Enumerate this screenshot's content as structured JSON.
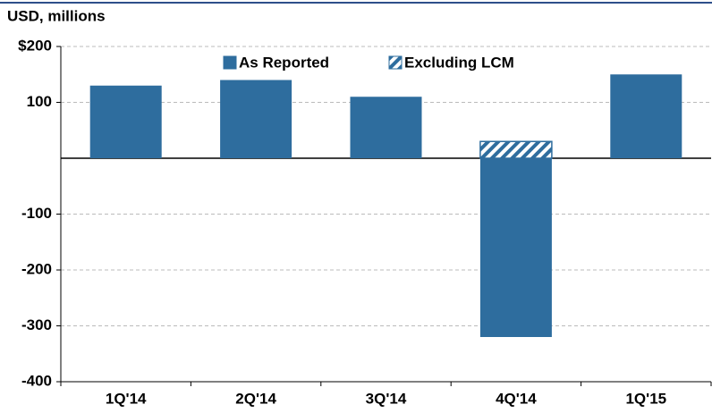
{
  "chart_data": {
    "type": "bar",
    "title": "USD, millions",
    "categories": [
      "1Q'14",
      "2Q'14",
      "3Q'14",
      "4Q'14",
      "1Q'15"
    ],
    "series": [
      {
        "name": "As Reported",
        "color": "#2e6d9e",
        "values": [
          130,
          140,
          110,
          -320,
          150
        ]
      },
      {
        "name": "Excluding LCM",
        "color": "#2e6d9e",
        "pattern": "hatch",
        "values": [
          null,
          null,
          null,
          30,
          null
        ]
      }
    ],
    "ylim": [
      -400,
      200
    ],
    "yticks": [
      {
        "value": 200,
        "label": "$200"
      },
      100,
      -100,
      -200,
      -300,
      -400
    ],
    "grid": true,
    "legend": "top"
  }
}
